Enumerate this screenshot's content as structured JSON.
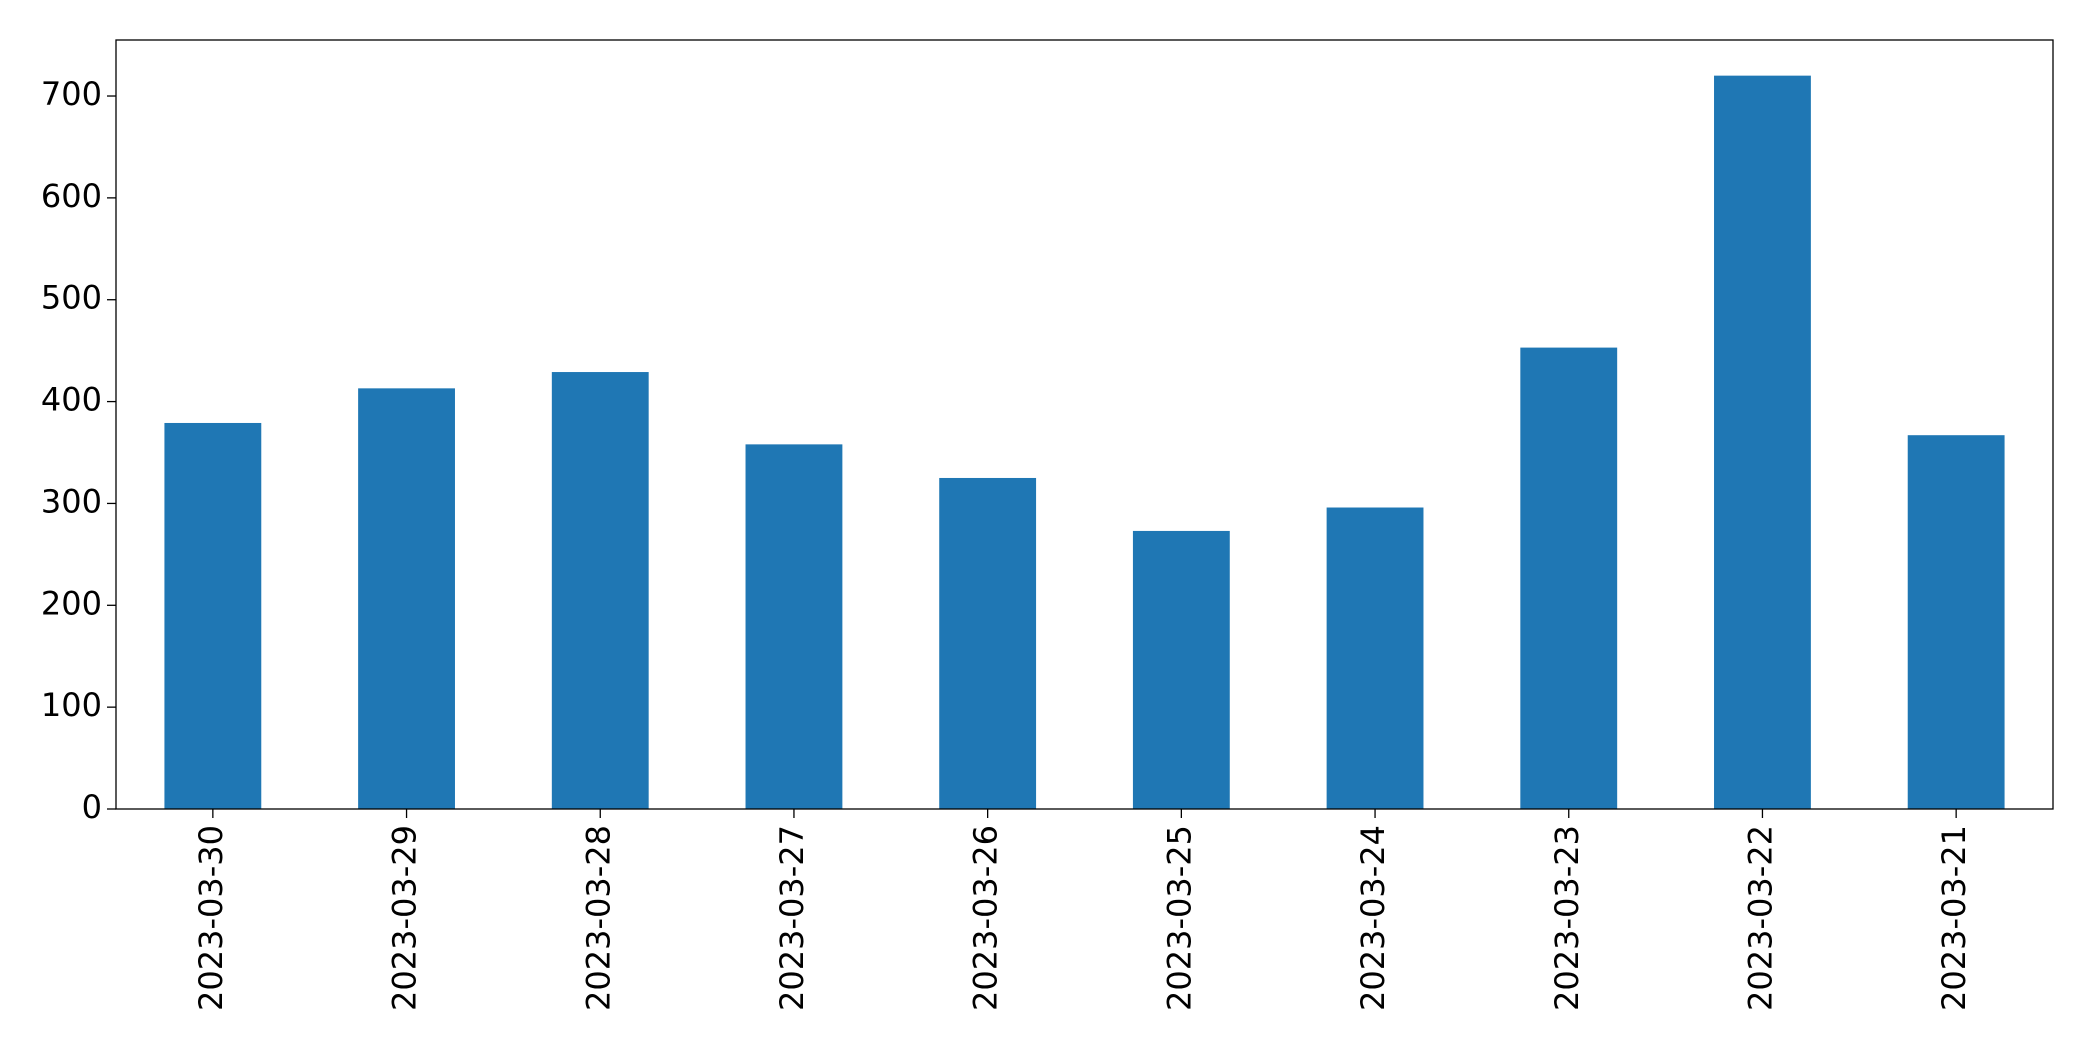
{
  "chart_data": {
    "type": "bar",
    "categories": [
      "2023-03-30",
      "2023-03-29",
      "2023-03-28",
      "2023-03-27",
      "2023-03-26",
      "2023-03-25",
      "2023-03-24",
      "2023-03-23",
      "2023-03-22",
      "2023-03-21"
    ],
    "values": [
      379,
      413,
      429,
      358,
      325,
      273,
      296,
      453,
      720,
      367
    ],
    "color": "#1f77b4",
    "ylim": [
      0,
      755
    ],
    "yticks": [
      0,
      100,
      200,
      300,
      400,
      500,
      600,
      700
    ],
    "grid": false
  }
}
